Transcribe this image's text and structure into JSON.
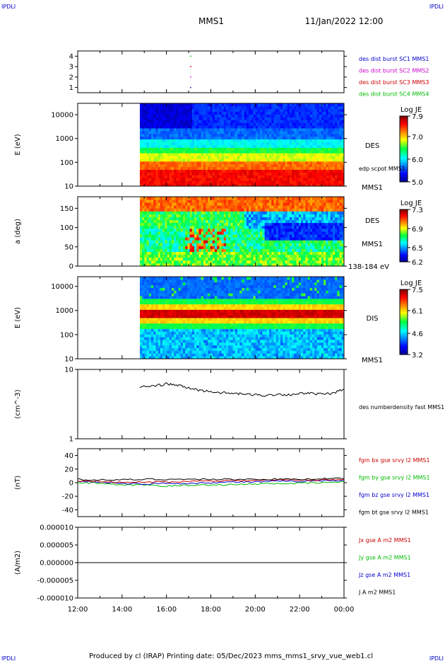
{
  "header": {
    "corner_label": "IPDLI",
    "spacecraft": "MMS1",
    "date_time": "11/Jan/2022 12:00"
  },
  "footer": {
    "text": "Produced by cl (IRAP)   Printing date: 05/Dec/2023   mms_mms1_srvy_vue_web1.cl"
  },
  "chart_data": [
    {
      "type": "scatter",
      "ylabel": "",
      "ylim": [
        0.5,
        4.5
      ],
      "yticks": [
        "1",
        "2",
        "3",
        "4"
      ],
      "legend": [
        {
          "text": "des dist burst SC1 MMS1",
          "color": "#0000cc"
        },
        {
          "text": "des dist burst SC2 MMS2",
          "color": "#cc00cc"
        },
        {
          "text": "des dist burst SC3 MMS3",
          "color": "#cc0000"
        },
        {
          "text": "des dist burst SC4 MMS4",
          "color": "#00bb00"
        }
      ],
      "points": [
        {
          "time": "17:05",
          "y": 4,
          "color": "#00bb00"
        },
        {
          "time": "17:05",
          "y": 3,
          "color": "#cc0000"
        },
        {
          "time": "17:05",
          "y": 2,
          "color": "#cc00cc"
        },
        {
          "time": "17:05",
          "y": 1,
          "color": "#0000cc"
        }
      ]
    },
    {
      "type": "heatmap",
      "ylabel": "E (eV)",
      "yscale": "log",
      "ylim": [
        10,
        30000
      ],
      "yticks": [
        "10",
        "100",
        "1000",
        "10000"
      ],
      "data_start": "14:48",
      "side_labels": [
        "DES",
        "edp scpot MMS1",
        "MMS1"
      ],
      "colorbar": {
        "title": "Log JE",
        "ticks": [
          "5.0",
          "6.0",
          "7.0",
          "7.9"
        ],
        "min": 5.0,
        "max": 7.9
      }
    },
    {
      "type": "heatmap",
      "ylabel": "a (deg)",
      "ylim": [
        0,
        180
      ],
      "yticks": [
        "0",
        "50",
        "100",
        "150"
      ],
      "data_start": "14:48",
      "side_labels": [
        "DES",
        "MMS1",
        "138-184 eV"
      ],
      "colorbar": {
        "title": "Log JE",
        "ticks": [
          "6.2",
          "6.5",
          "6.9",
          "7.3"
        ],
        "min": 6.2,
        "max": 7.3
      }
    },
    {
      "type": "heatmap",
      "ylabel": "E (eV)",
      "yscale": "log",
      "ylim": [
        10,
        25000
      ],
      "yticks": [
        "10",
        "100",
        "1000",
        "10000"
      ],
      "data_start": "14:48",
      "side_labels": [
        "DIS",
        "MMS1"
      ],
      "colorbar": {
        "title": "Log JE",
        "ticks": [
          "3.2",
          "4.6",
          "6.1",
          "7.5"
        ],
        "min": 3.2,
        "max": 7.5
      }
    },
    {
      "type": "line",
      "ylabel": "(cm^-3)",
      "yscale": "log",
      "ylim": [
        1,
        10
      ],
      "yticks": [
        "1",
        "10"
      ],
      "legend": [
        {
          "text": "des numberdensity fast MMS1",
          "color": "#000000"
        }
      ],
      "series": [
        {
          "color": "#000000",
          "x": [
            "14:48",
            "15:30",
            "16:00",
            "16:30",
            "17:00",
            "17:30",
            "18:00",
            "18:30",
            "19:00",
            "19:30",
            "20:00",
            "20:30",
            "21:00",
            "21:30",
            "22:00",
            "22:30",
            "23:00",
            "23:30",
            "00:00"
          ],
          "values": [
            5.6,
            5.8,
            6.2,
            5.9,
            5.4,
            5.0,
            4.8,
            4.6,
            4.5,
            4.4,
            4.3,
            4.2,
            4.4,
            4.3,
            4.5,
            4.5,
            4.4,
            4.5,
            5.2
          ]
        }
      ]
    },
    {
      "type": "line",
      "ylabel": "(nT)",
      "ylim": [
        -50,
        50
      ],
      "yticks": [
        "-40",
        "-20",
        "0",
        "20",
        "40"
      ],
      "legend": [
        {
          "text": "fgm bx gse srvy l2 MMS1",
          "color": "#cc0000"
        },
        {
          "text": "fgm by gse srvy l2 MMS1",
          "color": "#00bb00"
        },
        {
          "text": "fgm bz gse srvy l2 MMS1",
          "color": "#0000cc"
        },
        {
          "text": "fgm bt gse srvy l2 MMS1",
          "color": "#000000"
        }
      ],
      "series": [
        {
          "color": "#00bb00",
          "x": [
            "12:00",
            "13:00",
            "14:00",
            "15:00",
            "16:00",
            "17:00",
            "18:00",
            "19:00",
            "20:00",
            "21:00",
            "22:00",
            "23:00",
            "00:00"
          ],
          "values": [
            0,
            -1,
            -4,
            -3,
            -5,
            -4,
            -3,
            -3,
            -2,
            -1,
            -1,
            0,
            1
          ]
        },
        {
          "color": "#0000cc",
          "x": [
            "12:00",
            "13:00",
            "14:00",
            "15:00",
            "16:00",
            "17:00",
            "18:00",
            "19:00",
            "20:00",
            "21:00",
            "22:00",
            "23:00",
            "00:00"
          ],
          "values": [
            2,
            1,
            -1,
            -2,
            -1,
            -1,
            0,
            1,
            1,
            2,
            2,
            3,
            3
          ]
        },
        {
          "color": "#cc0000",
          "x": [
            "12:00",
            "13:00",
            "14:00",
            "15:00",
            "16:00",
            "17:00",
            "18:00",
            "19:00",
            "20:00",
            "21:00",
            "22:00",
            "23:00",
            "00:00"
          ],
          "values": [
            3,
            2,
            0,
            1,
            1,
            2,
            3,
            3,
            3,
            4,
            4,
            4,
            5
          ]
        },
        {
          "color": "#000000",
          "x": [
            "12:00",
            "13:00",
            "14:00",
            "15:00",
            "16:00",
            "17:00",
            "18:00",
            "19:00",
            "20:00",
            "21:00",
            "22:00",
            "23:00",
            "00:00"
          ],
          "values": [
            5,
            4,
            4,
            5,
            5,
            5,
            5,
            5,
            5,
            5,
            5,
            6,
            6
          ]
        }
      ]
    },
    {
      "type": "line",
      "ylabel": "(A/m2)",
      "ylim": [
        -1e-05,
        1e-05
      ],
      "yticks": [
        "-0.000010",
        "-0.000005",
        "0.000000",
        "0.000005",
        "0.000010"
      ],
      "legend": [
        {
          "text": "Jx gse A m2 MMS1",
          "color": "#cc0000"
        },
        {
          "text": "Jy gse A m2 MMS1",
          "color": "#00bb00"
        },
        {
          "text": "Jz gse A m2 MMS1",
          "color": "#0000cc"
        },
        {
          "text": "J A m2 MMS1",
          "color": "#000000"
        }
      ],
      "series": [
        {
          "color": "#000000",
          "x": [
            "12:00",
            "00:00"
          ],
          "values": [
            0,
            0
          ]
        }
      ],
      "xticks": [
        "12:00",
        "14:00",
        "16:00",
        "18:00",
        "20:00",
        "22:00",
        "00:00"
      ]
    }
  ]
}
